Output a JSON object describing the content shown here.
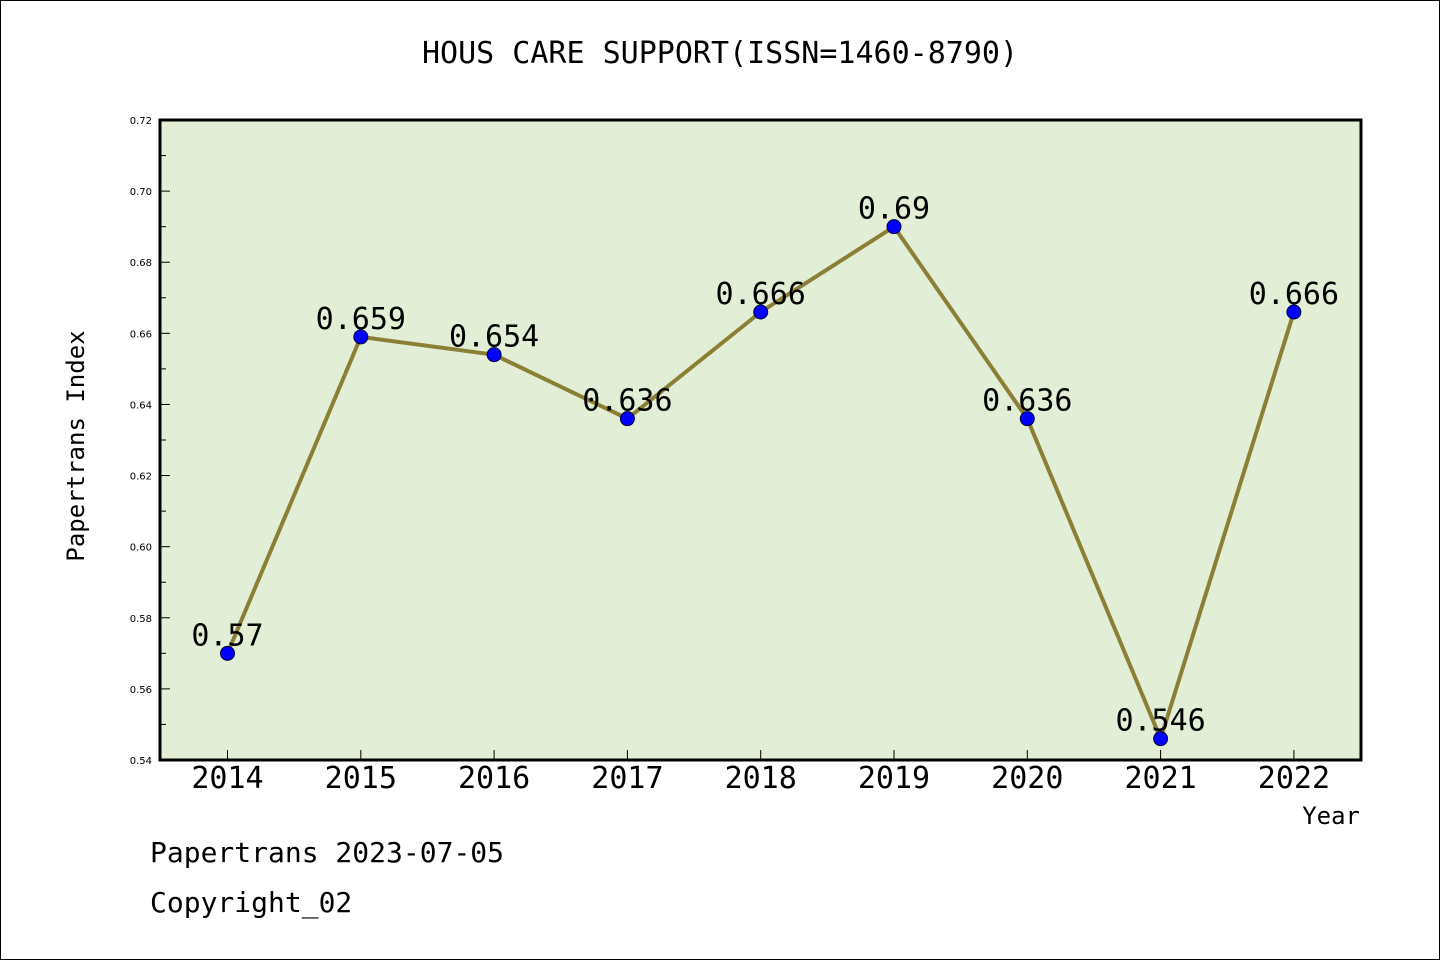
{
  "chart_data": {
    "type": "line",
    "title": "HOUS CARE SUPPORT(ISSN=1460-8790)",
    "xlabel": "Year",
    "ylabel": "Papertrans Index",
    "categories": [
      "2014",
      "2015",
      "2016",
      "2017",
      "2018",
      "2019",
      "2020",
      "2021",
      "2022"
    ],
    "series": [
      {
        "values": [
          0.57,
          0.659,
          0.654,
          0.636,
          0.666,
          0.69,
          0.636,
          0.546,
          0.666
        ],
        "labels": [
          "0.57",
          "0.659",
          "0.654",
          "0.636",
          "0.666",
          "0.69",
          "0.636",
          "0.546",
          "0.666"
        ]
      }
    ],
    "ylim": [
      0.54,
      0.72
    ],
    "yticks": [
      "0.54",
      "0.56",
      "0.58",
      "0.60",
      "0.62",
      "0.64",
      "0.66",
      "0.68",
      "0.70",
      "0.72"
    ],
    "grid": false,
    "colors": {
      "plot_background": "#e2efd6",
      "line": "#8b7f35",
      "marker": "#0000ff"
    }
  },
  "footer": {
    "line1": "Papertrans 2023-07-05",
    "line2": "Copyright_02"
  }
}
